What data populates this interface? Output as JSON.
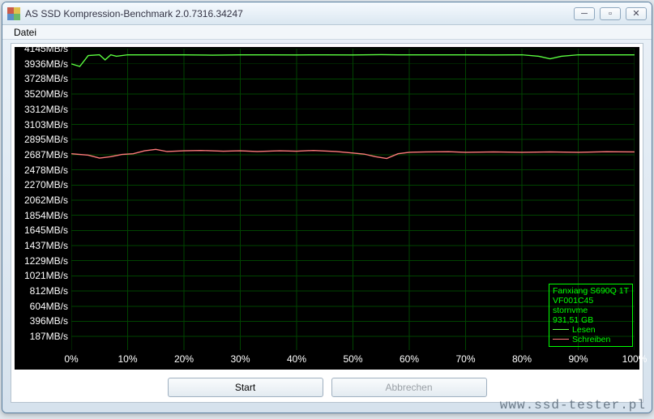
{
  "window": {
    "title": "AS SSD Kompression-Benchmark 2.0.7316.34247",
    "app_icon_colors": [
      "#c95b4b",
      "#e0c04d",
      "#5b8ec9",
      "#6bb96b"
    ]
  },
  "menu": {
    "file": "Datei"
  },
  "chart": {
    "type": "line",
    "background_color": "#000000",
    "grid_color": "#004400",
    "label_color": "#ffffff",
    "label_fontsize": 12,
    "y_unit": "MB/s",
    "y_ticks": [
      187,
      396,
      604,
      812,
      1021,
      1229,
      1437,
      1645,
      1854,
      2062,
      2270,
      2478,
      2687,
      2895,
      3103,
      3312,
      3520,
      3728,
      3936,
      4145
    ],
    "y_max": 4145,
    "x_ticks": [
      0,
      10,
      20,
      30,
      40,
      50,
      60,
      70,
      80,
      90,
      100
    ],
    "x_unit": "%",
    "series": [
      {
        "name": "Lesen",
        "label": "Lesen",
        "color": "#5cff40",
        "stroke_width": 1.4,
        "points": [
          [
            0,
            3936
          ],
          [
            1.5,
            3900
          ],
          [
            3,
            4050
          ],
          [
            5,
            4060
          ],
          [
            6,
            3990
          ],
          [
            7,
            4060
          ],
          [
            8,
            4040
          ],
          [
            10,
            4060
          ],
          [
            15,
            4060
          ],
          [
            20,
            4060
          ],
          [
            25,
            4055
          ],
          [
            30,
            4060
          ],
          [
            35,
            4060
          ],
          [
            40,
            4058
          ],
          [
            45,
            4060
          ],
          [
            50,
            4058
          ],
          [
            55,
            4062
          ],
          [
            58,
            4060
          ],
          [
            60,
            4060
          ],
          [
            65,
            4060
          ],
          [
            70,
            4060
          ],
          [
            75,
            4058
          ],
          [
            80,
            4060
          ],
          [
            83,
            4040
          ],
          [
            85,
            4005
          ],
          [
            87,
            4040
          ],
          [
            90,
            4060
          ],
          [
            95,
            4060
          ],
          [
            100,
            4060
          ]
        ]
      },
      {
        "name": "Schreiben",
        "label": "Schreiben",
        "color": "#ff7a7a",
        "stroke_width": 1.4,
        "points": [
          [
            0,
            2700
          ],
          [
            3,
            2680
          ],
          [
            5,
            2640
          ],
          [
            7,
            2660
          ],
          [
            9,
            2690
          ],
          [
            11,
            2700
          ],
          [
            13,
            2740
          ],
          [
            15,
            2760
          ],
          [
            17,
            2730
          ],
          [
            20,
            2740
          ],
          [
            23,
            2745
          ],
          [
            27,
            2735
          ],
          [
            30,
            2740
          ],
          [
            33,
            2730
          ],
          [
            37,
            2740
          ],
          [
            40,
            2735
          ],
          [
            43,
            2745
          ],
          [
            47,
            2730
          ],
          [
            50,
            2710
          ],
          [
            52,
            2695
          ],
          [
            54,
            2660
          ],
          [
            56,
            2635
          ],
          [
            58,
            2700
          ],
          [
            60,
            2720
          ],
          [
            63,
            2725
          ],
          [
            67,
            2728
          ],
          [
            70,
            2720
          ],
          [
            75,
            2725
          ],
          [
            80,
            2720
          ],
          [
            85,
            2725
          ],
          [
            90,
            2720
          ],
          [
            95,
            2728
          ],
          [
            100,
            2725
          ]
        ]
      }
    ]
  },
  "legend": {
    "border_color": "#00ff00",
    "text_color": "#00ff00",
    "lines": [
      "Fanxiang S690Q 1T",
      "VF001C45",
      "stornvme",
      "931,51 GB"
    ]
  },
  "buttons": {
    "start": "Start",
    "cancel": "Abbrechen"
  },
  "watermark": "www.ssd-tester.pl"
}
